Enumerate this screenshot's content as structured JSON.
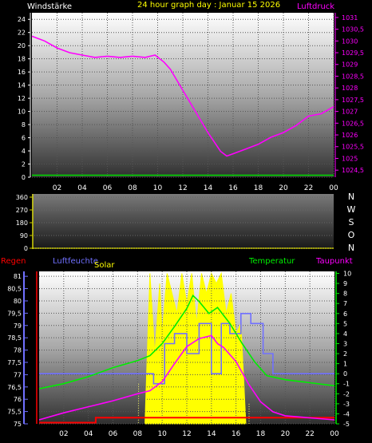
{
  "header": {
    "title": "24 hour graph day : Januar 15 2026",
    "left_label": "Windstärke",
    "right_label": "Luftdruck"
  },
  "colors": {
    "background": "#000000",
    "header_title": "#ffff00",
    "wind": "#ffffff",
    "wind_line": "#00dd00",
    "pressure": "#ff00ff",
    "direction": "#ffffff",
    "rain": "#ff0000",
    "humidity": "#7070ff",
    "solar": "#ffff00",
    "temperature": "#00ee00",
    "dewpoint": "#ff00ff"
  },
  "chart_data": [
    {
      "type": "line",
      "panel": "wind-pressure",
      "xlabels": [
        "02",
        "04",
        "06",
        "08",
        "10",
        "12",
        "14",
        "16",
        "18",
        "20",
        "22",
        "00"
      ],
      "x_range_hours": [
        0,
        24
      ],
      "ylabel_left": "Windstärke",
      "ylabel_right": "Luftdruck",
      "yticks_left": [
        "0",
        "2",
        "4",
        "6",
        "8",
        "10",
        "12",
        "14",
        "16",
        "18",
        "20",
        "22",
        "24"
      ],
      "ylim_left": [
        0,
        25
      ],
      "yticks_right": [
        "1024,5",
        "1025",
        "1025,5",
        "1026",
        "1026,5",
        "1027",
        "1027,5",
        "1028",
        "1028,5",
        "1029",
        "1029,5",
        "1030",
        "1030,5",
        "1031"
      ],
      "ylim_right": [
        1024.2,
        1031.2
      ],
      "grid": true,
      "series": [
        {
          "name": "Windstärke",
          "axis": "left",
          "x": [
            0,
            24
          ],
          "y": [
            0.3,
            0.3
          ]
        },
        {
          "name": "Luftdruck",
          "axis": "right",
          "x": [
            0,
            1,
            2,
            3,
            4,
            5,
            6,
            7,
            8,
            9,
            9.8,
            10.5,
            11,
            12,
            13,
            14,
            15,
            15.5,
            16,
            17,
            18,
            19,
            20,
            21,
            22,
            23,
            24
          ],
          "y": [
            1030.2,
            1030.0,
            1029.7,
            1029.5,
            1029.4,
            1029.3,
            1029.35,
            1029.3,
            1029.35,
            1029.3,
            1029.4,
            1029.1,
            1028.8,
            1027.9,
            1027.0,
            1026.1,
            1025.3,
            1025.1,
            1025.2,
            1025.4,
            1025.6,
            1025.9,
            1026.1,
            1026.4,
            1026.8,
            1026.9,
            1027.2
          ]
        }
      ]
    },
    {
      "type": "line",
      "panel": "wind-direction",
      "yticks": [
        "0",
        "90",
        "180",
        "270",
        "360"
      ],
      "ylim": [
        0,
        360
      ],
      "compass_labels": [
        "N",
        "W",
        "S",
        "O",
        "N"
      ],
      "grid": true,
      "series": []
    },
    {
      "type": "line",
      "panel": "climate",
      "xlabels": [
        "02",
        "04",
        "06",
        "08",
        "10",
        "12",
        "14",
        "16",
        "18",
        "20",
        "22",
        "00"
      ],
      "x_range_hours": [
        0,
        24
      ],
      "legend": [
        "Regen",
        "Luftfeuchte",
        "Solar",
        "Temperatur",
        "Taupunkt"
      ],
      "yticks_left": [
        "75",
        "75,5",
        "76",
        "76,5",
        "77",
        "77,5",
        "78",
        "78,5",
        "79",
        "79,5",
        "80",
        "80,5",
        "81"
      ],
      "ylim_left": [
        75,
        81.2
      ],
      "yticks_right": [
        "-5",
        "-4",
        "-3",
        "-2",
        "-1",
        "0",
        "1",
        "2",
        "3",
        "4",
        "5",
        "6",
        "7",
        "8",
        "9",
        "10"
      ],
      "ylim_right": [
        -5,
        10.2
      ],
      "grid": true,
      "series": [
        {
          "name": "Regen",
          "axis": "left",
          "x": [
            0,
            4.6,
            4.6,
            24
          ],
          "y": [
            75.05,
            75.05,
            75.25,
            75.25
          ]
        },
        {
          "name": "Luftfeuchte",
          "axis": "right",
          "x": [
            0,
            9.3,
            9.3,
            10.2,
            10.2,
            11,
            11,
            12,
            12,
            13,
            13,
            14,
            14,
            14.8,
            14.8,
            15.5,
            15.5,
            16.4,
            16.4,
            17.2,
            17.2,
            18.2,
            18.2,
            19,
            19,
            24
          ],
          "y": [
            0,
            0,
            -1,
            -1,
            3,
            3,
            4,
            4,
            2,
            2,
            5,
            5,
            0,
            0,
            5,
            5,
            4,
            4,
            6,
            6,
            5,
            5,
            2,
            2,
            0,
            0
          ]
        },
        {
          "name": "Temperatur",
          "axis": "right",
          "x": [
            0,
            2,
            4,
            6,
            8,
            9,
            10,
            11,
            12,
            12.5,
            13,
            13.8,
            14.5,
            15.5,
            16.5,
            17.5,
            18.5,
            20,
            22,
            24
          ],
          "y": [
            -1.5,
            -1.0,
            -0.3,
            0.6,
            1.3,
            1.8,
            3.0,
            4.7,
            6.5,
            7.8,
            7.2,
            6.0,
            6.6,
            5.0,
            3.0,
            1.2,
            -0.2,
            -0.6,
            -0.9,
            -1.2
          ]
        },
        {
          "name": "Taupunkt",
          "axis": "right",
          "x": [
            0,
            2,
            4,
            6,
            8,
            9,
            10,
            11,
            12,
            13,
            14,
            14.5,
            15,
            16,
            17,
            18,
            19,
            20,
            22,
            24
          ],
          "y": [
            -4.6,
            -3.9,
            -3.3,
            -2.7,
            -2.0,
            -1.7,
            -0.8,
            1.0,
            2.7,
            3.5,
            3.8,
            3.0,
            2.6,
            1.2,
            -1.0,
            -2.8,
            -3.8,
            -4.2,
            -4.4,
            -4.6
          ]
        },
        {
          "name": "Solar",
          "axis": "right",
          "x": [
            8.6,
            9,
            9.4,
            9.8,
            10,
            10.4,
            10.8,
            11.2,
            11.6,
            12,
            12.4,
            12.8,
            13.2,
            13.6,
            14,
            14.4,
            14.8,
            15.2,
            15.6,
            16,
            16.4,
            16.8
          ],
          "y": [
            -5,
            10,
            2,
            9,
            4,
            10,
            8,
            6,
            10,
            7,
            10,
            5,
            10,
            8,
            10,
            9,
            10,
            6,
            8,
            4,
            5,
            -5
          ]
        }
      ]
    }
  ]
}
